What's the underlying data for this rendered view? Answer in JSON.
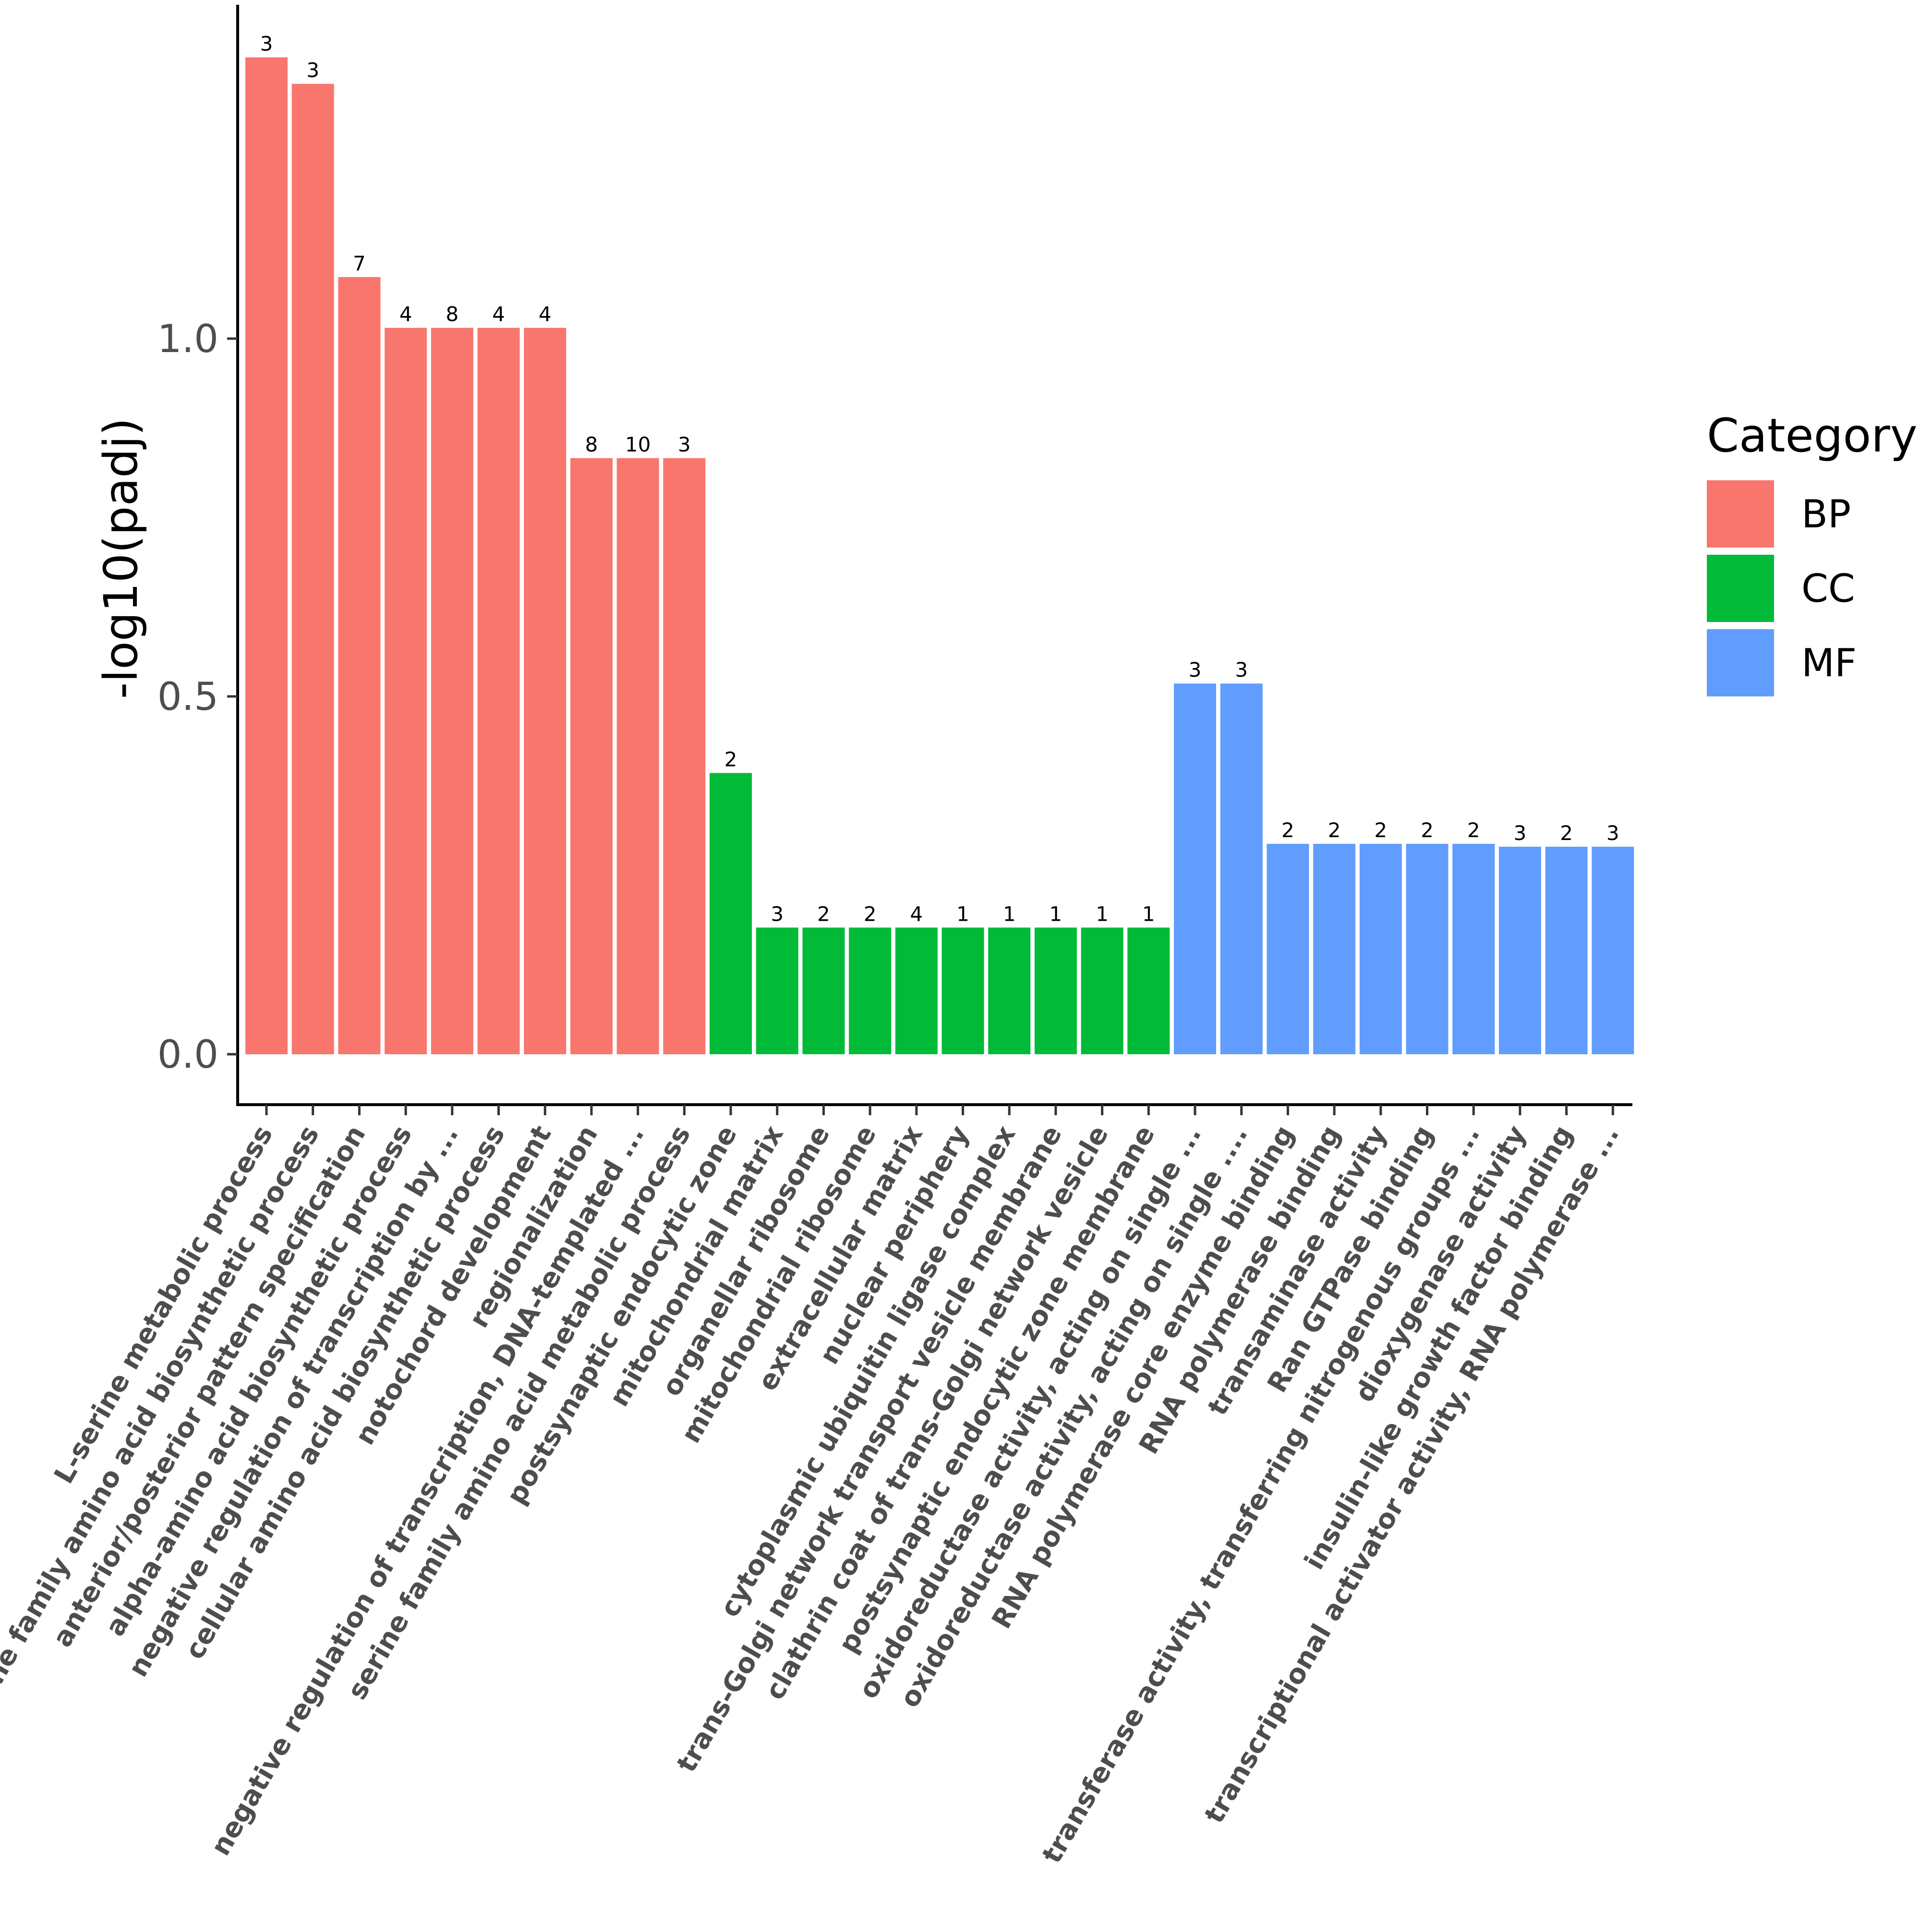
{
  "chart_data": {
    "type": "bar",
    "title": "",
    "xlabel": "",
    "ylabel": "-log10(padj)",
    "ylim": [
      -0.07,
      1.46
    ],
    "yticks": [
      {
        "value": 0.0,
        "label": "0.0"
      },
      {
        "value": 0.5,
        "label": "0.5"
      },
      {
        "value": 1.0,
        "label": "1.0"
      }
    ],
    "legend": {
      "title": "Category",
      "position": "right",
      "items": [
        {
          "key": "BP",
          "label": "BP",
          "color": "#F8766D"
        },
        {
          "key": "CC",
          "label": "CC",
          "color": "#00BA38"
        },
        {
          "key": "MF",
          "label": "MF",
          "color": "#619CFF"
        }
      ]
    },
    "bars": [
      {
        "label": "L-serine metabolic process",
        "value": 1.393,
        "count": "3",
        "category": "BP"
      },
      {
        "label": "serine family amino acid biosynthetic process",
        "value": 1.356,
        "count": "3",
        "category": "BP"
      },
      {
        "label": "anterior/posterior pattern specification",
        "value": 1.086,
        "count": "7",
        "category": "BP"
      },
      {
        "label": "alpha-amino acid biosynthetic process",
        "value": 1.015,
        "count": "4",
        "category": "BP"
      },
      {
        "label": "negative regulation of transcription by ...",
        "value": 1.015,
        "count": "8",
        "category": "BP"
      },
      {
        "label": "cellular amino acid biosynthetic process",
        "value": 1.015,
        "count": "4",
        "category": "BP"
      },
      {
        "label": "notochord development",
        "value": 1.015,
        "count": "4",
        "category": "BP"
      },
      {
        "label": "regionalization",
        "value": 0.833,
        "count": "8",
        "category": "BP"
      },
      {
        "label": "negative regulation of transcription, DNA-templated ...",
        "value": 0.833,
        "count": "10",
        "category": "BP"
      },
      {
        "label": "serine family amino acid metabolic process",
        "value": 0.833,
        "count": "3",
        "category": "BP"
      },
      {
        "label": "postsynaptic endocytic zone",
        "value": 0.393,
        "count": "2",
        "category": "CC"
      },
      {
        "label": "mitochondrial matrix",
        "value": 0.177,
        "count": "3",
        "category": "CC"
      },
      {
        "label": "organellar ribosome",
        "value": 0.177,
        "count": "2",
        "category": "CC"
      },
      {
        "label": "mitochondrial ribosome",
        "value": 0.177,
        "count": "2",
        "category": "CC"
      },
      {
        "label": "extracellular matrix",
        "value": 0.177,
        "count": "4",
        "category": "CC"
      },
      {
        "label": "nuclear periphery",
        "value": 0.177,
        "count": "1",
        "category": "CC"
      },
      {
        "label": "cytoplasmic ubiquitin ligase complex",
        "value": 0.177,
        "count": "1",
        "category": "CC"
      },
      {
        "label": "trans-Golgi network transport vesicle membrane",
        "value": 0.177,
        "count": "1",
        "category": "CC"
      },
      {
        "label": "clathrin coat of trans-Golgi network vesicle",
        "value": 0.177,
        "count": "1",
        "category": "CC"
      },
      {
        "label": "postsynaptic endocytic zone membrane",
        "value": 0.177,
        "count": "1",
        "category": "CC"
      },
      {
        "label": "oxidoreductase activity, acting on single ...",
        "value": 0.518,
        "count": "3",
        "category": "MF"
      },
      {
        "label": "oxidoreductase activity, acting on single ....",
        "value": 0.518,
        "count": "3",
        "category": "MF"
      },
      {
        "label": "RNA polymerase core enzyme binding",
        "value": 0.294,
        "count": "2",
        "category": "MF"
      },
      {
        "label": "RNA polymerase binding",
        "value": 0.294,
        "count": "2",
        "category": "MF"
      },
      {
        "label": "transaminase activity",
        "value": 0.294,
        "count": "2",
        "category": "MF"
      },
      {
        "label": "Ran GTPase binding",
        "value": 0.294,
        "count": "2",
        "category": "MF"
      },
      {
        "label": "transferase activity, transferring nitrogenous groups ...",
        "value": 0.294,
        "count": "2",
        "category": "MF"
      },
      {
        "label": "dioxygenase activity",
        "value": 0.29,
        "count": "3",
        "category": "MF"
      },
      {
        "label": "insulin-like growth factor binding",
        "value": 0.29,
        "count": "2",
        "category": "MF"
      },
      {
        "label": "transcriptional activator activity, RNA polymerase ...",
        "value": 0.29,
        "count": "3",
        "category": "MF"
      }
    ]
  }
}
